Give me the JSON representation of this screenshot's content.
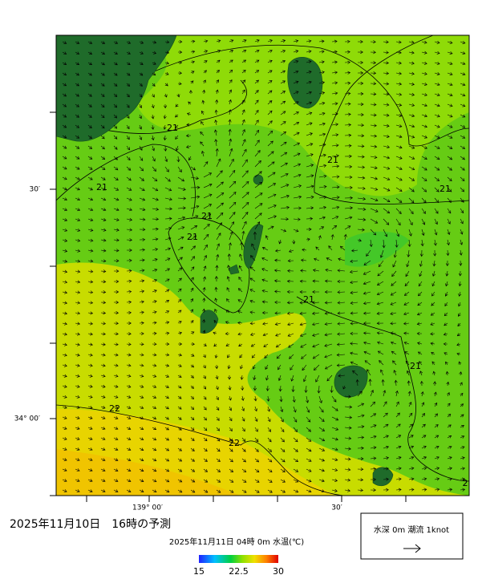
{
  "map": {
    "axis_labels": {
      "left": [
        "30′",
        "34° 00′"
      ],
      "bottom": [
        "139° 00′",
        "30′"
      ]
    },
    "contour_labels": [
      "21",
      "21",
      "21",
      "21",
      "21",
      "21",
      "21",
      "21",
      "22",
      "22",
      "2"
    ],
    "title": "2025年11月10日　16時の予測",
    "subtitle": "2025年11月11日 04時 0m 水温(℃)",
    "colorbar": {
      "lim": [
        15,
        30
      ],
      "ticks": [
        15,
        22.5,
        30
      ]
    },
    "legend": {
      "label": "水深 0m 潮流 1knot"
    }
  }
}
